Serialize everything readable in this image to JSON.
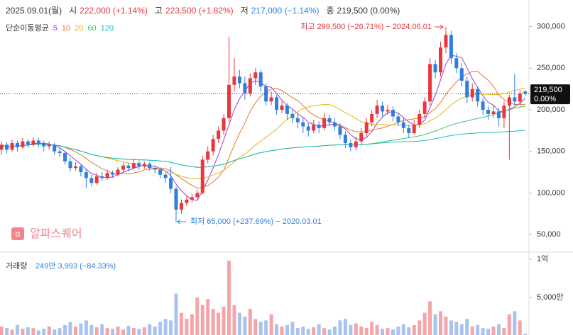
{
  "chart_data": {
    "type": "candlestick",
    "header": {
      "date": "2025.09.01(월)",
      "items": [
        {
          "label": "시",
          "value": "222,000 (+1.14%)"
        },
        {
          "label": "고",
          "value": "223,500 (+1.82%)"
        },
        {
          "label": "저",
          "value": "217,000 (−1.14%)"
        },
        {
          "label": "종",
          "value": "219,500 (0.00%)"
        }
      ]
    },
    "ma_title": "단순이동평균",
    "ma_periods": [
      5,
      10,
      20,
      60,
      120
    ],
    "ma_colors": [
      "#a23bd6",
      "#e8762c",
      "#e3b70f",
      "#3cc46c",
      "#22b8c2"
    ],
    "up_color": "#e8383d",
    "down_color": "#2f7fe0",
    "up_volume_color": "#f3a5a8",
    "down_volume_color": "#a9c3ee",
    "open": [
      152000,
      158000,
      152000,
      160000,
      155000,
      162000,
      158000,
      163000,
      160000,
      156000,
      158000,
      150000,
      148000,
      138000,
      130000,
      132000,
      125000,
      118000,
      112000,
      120000,
      118000,
      124000,
      122000,
      128000,
      133000,
      130000,
      136000,
      132000,
      135000,
      130000,
      128000,
      122000,
      118000,
      105000,
      80000,
      88000,
      92000,
      95000,
      100000,
      140000,
      150000,
      165000,
      175000,
      190000,
      230000,
      240000,
      232000,
      220000,
      238000,
      245000,
      228000,
      210000,
      215000,
      200000,
      205000,
      195000,
      190000,
      185000,
      180000,
      175000,
      182000,
      178000,
      190000,
      185000,
      180000,
      170000,
      160000,
      155000,
      162000,
      172000,
      185000,
      195000,
      205000,
      198000,
      200000,
      192000,
      185000,
      178000,
      172000,
      182000,
      195000,
      210000,
      255000,
      245000,
      275000,
      290000,
      262000,
      250000,
      235000,
      215000,
      225000,
      210000,
      200000,
      195000,
      198000,
      190000,
      205000,
      215000,
      210000,
      222000
    ],
    "high": [
      162000,
      161000,
      164000,
      163000,
      166000,
      165000,
      167000,
      166000,
      163000,
      162000,
      160000,
      155000,
      150000,
      142000,
      137000,
      134000,
      128000,
      122000,
      124000,
      125000,
      128000,
      127000,
      131000,
      137000,
      136000,
      140000,
      139000,
      138000,
      137000,
      133000,
      131000,
      125000,
      131000,
      108000,
      92000,
      96000,
      99000,
      104000,
      145000,
      156000,
      170000,
      180000,
      195000,
      288000,
      262000,
      248000,
      240000,
      244000,
      250000,
      248000,
      232000,
      222000,
      218000,
      210000,
      208000,
      200000,
      196000,
      190000,
      184000,
      188000,
      186000,
      196000,
      194000,
      190000,
      184000,
      174000,
      164000,
      168000,
      178000,
      190000,
      200000,
      212000,
      210000,
      206000,
      204000,
      196000,
      190000,
      182000,
      188000,
      200000,
      215000,
      262000,
      260000,
      282000,
      299500,
      295000,
      268000,
      256000,
      240000,
      232000,
      228000,
      214000,
      204000,
      205000,
      202000,
      210000,
      218000,
      243000,
      224000,
      223500
    ],
    "low": [
      146000,
      148000,
      150000,
      150000,
      153000,
      154000,
      156000,
      155000,
      150000,
      152000,
      146000,
      143000,
      134000,
      126000,
      127000,
      120000,
      106000,
      108000,
      110000,
      114000,
      116000,
      118000,
      120000,
      125000,
      126000,
      128000,
      128000,
      129000,
      127000,
      124000,
      118000,
      112000,
      100000,
      65000,
      75000,
      84000,
      88000,
      92000,
      98000,
      136000,
      145000,
      160000,
      170000,
      185000,
      222000,
      226000,
      212000,
      216000,
      230000,
      222000,
      205000,
      206000,
      194000,
      196000,
      188000,
      184000,
      178000,
      172000,
      168000,
      172000,
      172000,
      175000,
      180000,
      175000,
      165000,
      154000,
      150000,
      152000,
      158000,
      168000,
      180000,
      190000,
      192000,
      194000,
      186000,
      180000,
      172000,
      166000,
      170000,
      178000,
      190000,
      205000,
      238000,
      240000,
      268000,
      255000,
      244000,
      228000,
      208000,
      210000,
      204000,
      194000,
      188000,
      190000,
      180000,
      178000,
      140000,
      205000,
      206000,
      217000
    ],
    "close": [
      158000,
      152000,
      160000,
      155000,
      162000,
      158000,
      163000,
      160000,
      156000,
      158000,
      150000,
      148000,
      138000,
      130000,
      132000,
      125000,
      118000,
      112000,
      120000,
      118000,
      124000,
      122000,
      128000,
      133000,
      130000,
      136000,
      132000,
      135000,
      130000,
      128000,
      122000,
      118000,
      105000,
      80000,
      88000,
      92000,
      95000,
      100000,
      140000,
      150000,
      165000,
      175000,
      190000,
      230000,
      240000,
      232000,
      220000,
      238000,
      245000,
      228000,
      210000,
      215000,
      200000,
      205000,
      195000,
      190000,
      185000,
      180000,
      175000,
      182000,
      178000,
      190000,
      185000,
      180000,
      170000,
      160000,
      155000,
      162000,
      172000,
      185000,
      195000,
      205000,
      198000,
      200000,
      192000,
      185000,
      178000,
      172000,
      182000,
      195000,
      210000,
      255000,
      245000,
      275000,
      290000,
      262000,
      250000,
      235000,
      215000,
      225000,
      210000,
      200000,
      195000,
      198000,
      190000,
      205000,
      215000,
      210000,
      219500,
      219500
    ],
    "volume": [
      12000000,
      10000000,
      8000000,
      14000000,
      9000000,
      11000000,
      10000000,
      7000000,
      9000000,
      12000000,
      8000000,
      10000000,
      14000000,
      18000000,
      12000000,
      16000000,
      20000000,
      14000000,
      11000000,
      15000000,
      10000000,
      9000000,
      12000000,
      8000000,
      13000000,
      10000000,
      9000000,
      11000000,
      15000000,
      12000000,
      18000000,
      22000000,
      20000000,
      55000000,
      30000000,
      22000000,
      28000000,
      50000000,
      40000000,
      48000000,
      35000000,
      30000000,
      38000000,
      98000000,
      40000000,
      30000000,
      25000000,
      35000000,
      22000000,
      18000000,
      20000000,
      28000000,
      15000000,
      12000000,
      14000000,
      18000000,
      10000000,
      12000000,
      9000000,
      11000000,
      15000000,
      10000000,
      8000000,
      12000000,
      20000000,
      22000000,
      14000000,
      16000000,
      12000000,
      10000000,
      18000000,
      14000000,
      9000000,
      10000000,
      8000000,
      12000000,
      15000000,
      11000000,
      14000000,
      20000000,
      30000000,
      45000000,
      28000000,
      32000000,
      25000000,
      20000000,
      18000000,
      15000000,
      22000000,
      12000000,
      14000000,
      10000000,
      9000000,
      12000000,
      15000000,
      10000000,
      28000000,
      32000000,
      20000000,
      2493993
    ],
    "ylim": [
      34000,
      332000
    ],
    "yticks": [
      {
        "value": 50000,
        "label": "50,000"
      },
      {
        "value": 100000,
        "label": "100,000"
      },
      {
        "value": 150000,
        "label": "150,000"
      },
      {
        "value": 200000,
        "label": "200,000"
      },
      {
        "value": 250000,
        "label": "250,000"
      },
      {
        "value": 300000,
        "label": "300,000"
      }
    ],
    "volume_ylim": [
      0,
      100000000
    ],
    "volume_ticks": [
      {
        "value": 50000000,
        "label": "5,000만"
      },
      {
        "value": 100000000,
        "label": "1억"
      }
    ],
    "price_tag": {
      "value": 219500,
      "label": "219,500",
      "change": "0.00%"
    },
    "annotations": {
      "high": "최고 299,500 (−26.71%) − 2024.06.01",
      "low": "최저 65,000 (+237.69%) − 2020.03.01"
    },
    "volume_title": "거래량",
    "volume_label": "249만 3,993 (−84.33%)",
    "watermark": "알파스퀘어"
  }
}
